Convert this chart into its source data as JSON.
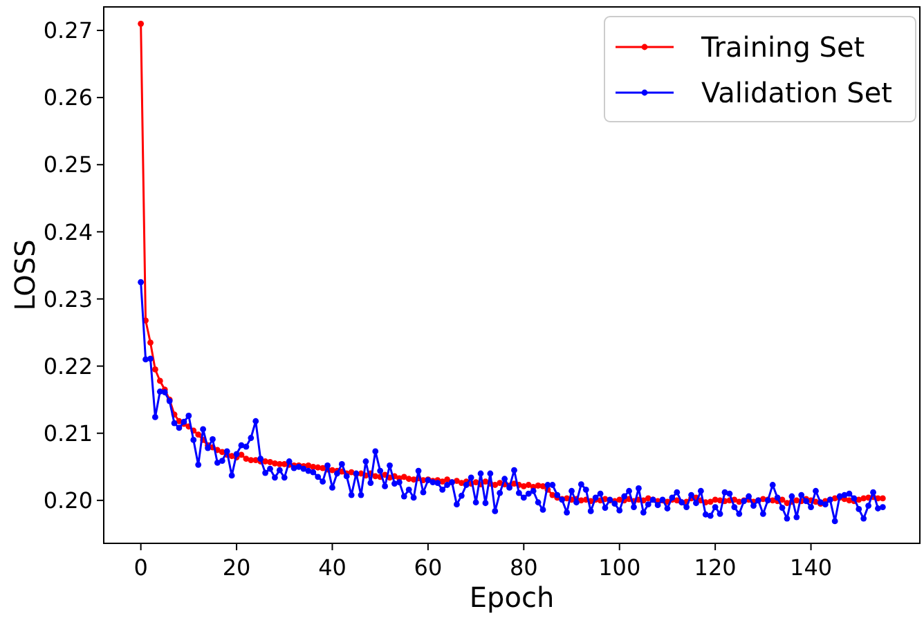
{
  "chart_data": {
    "type": "line",
    "xlabel": "Epoch",
    "ylabel": "LOSS",
    "x": [
      0,
      1,
      2,
      3,
      4,
      5,
      6,
      7,
      8,
      9,
      10,
      11,
      12,
      13,
      14,
      15,
      16,
      17,
      18,
      19,
      20,
      21,
      22,
      23,
      24,
      25,
      26,
      27,
      28,
      29,
      30,
      31,
      32,
      33,
      34,
      35,
      36,
      37,
      38,
      39,
      40,
      41,
      42,
      43,
      44,
      45,
      46,
      47,
      48,
      49,
      50,
      51,
      52,
      53,
      54,
      55,
      56,
      57,
      58,
      59,
      60,
      61,
      62,
      63,
      64,
      65,
      66,
      67,
      68,
      69,
      70,
      71,
      72,
      73,
      74,
      75,
      76,
      77,
      78,
      79,
      80,
      81,
      82,
      83,
      84,
      85,
      86,
      87,
      88,
      89,
      90,
      91,
      92,
      93,
      94,
      95,
      96,
      97,
      98,
      99,
      100,
      101,
      102,
      103,
      104,
      105,
      106,
      107,
      108,
      109,
      110,
      111,
      112,
      113,
      114,
      115,
      116,
      117,
      118,
      119,
      120,
      121,
      122,
      123,
      124,
      125,
      126,
      127,
      128,
      129,
      130,
      131,
      132,
      133,
      134,
      135,
      136,
      137,
      138,
      139,
      140,
      141,
      142,
      143,
      144,
      145,
      146,
      147,
      148,
      149,
      150,
      151,
      152,
      153,
      154,
      155
    ],
    "series": [
      {
        "name": "Training Set",
        "color": "#ff0000",
        "values": [
          0.271,
          0.2268,
          0.2235,
          0.2195,
          0.2178,
          0.2165,
          0.215,
          0.2128,
          0.2118,
          0.2114,
          0.211,
          0.2104,
          0.2098,
          0.209,
          0.2082,
          0.2079,
          0.2075,
          0.2072,
          0.2068,
          0.2066,
          0.2064,
          0.2068,
          0.2062,
          0.206,
          0.206,
          0.2058,
          0.2058,
          0.2057,
          0.2055,
          0.2054,
          0.2054,
          0.2053,
          0.2052,
          0.2052,
          0.2051,
          0.2052,
          0.205,
          0.2049,
          0.2048,
          0.2046,
          0.2045,
          0.2044,
          0.2043,
          0.204,
          0.2042,
          0.2039,
          0.204,
          0.2037,
          0.204,
          0.2036,
          0.2035,
          0.2038,
          0.2034,
          0.2036,
          0.2033,
          0.2035,
          0.2032,
          0.2031,
          0.2033,
          0.203,
          0.2031,
          0.2029,
          0.203,
          0.2028,
          0.2031,
          0.2027,
          0.2029,
          0.2026,
          0.2028,
          0.2025,
          0.2027,
          0.2024,
          0.2028,
          0.2025,
          0.2023,
          0.2026,
          0.2024,
          0.2022,
          0.2025,
          0.2023,
          0.2021,
          0.2023,
          0.202,
          0.2022,
          0.2021,
          0.2016,
          0.2008,
          0.2004,
          0.2002,
          0.2003,
          0.2001,
          0.2002,
          0.2,
          0.2001,
          0.1999,
          0.2001,
          0.2,
          0.2002,
          0.2,
          0.1999,
          0.2001,
          0.2,
          0.2002,
          0.1999,
          0.2001,
          0.2,
          0.2003,
          0.2001,
          0.1999,
          0.2,
          0.1998,
          0.2001,
          0.2,
          0.1997,
          0.1998,
          0.2003,
          0.2004,
          0.2,
          0.1997,
          0.1998,
          0.2001,
          0.2,
          0.1999,
          0.2,
          0.2001,
          0.1998,
          0.2,
          0.2001,
          0.1998,
          0.2,
          0.2002,
          0.2001,
          0.2,
          0.1999,
          0.2001,
          0.1996,
          0.1998,
          0.2,
          0.1999,
          0.2002,
          0.2,
          0.1998,
          0.1995,
          0.1999,
          0.2001,
          0.2003,
          0.2004,
          0.2002,
          0.2,
          0.1999,
          0.2001,
          0.2003,
          0.2004,
          0.2005,
          0.2003,
          0.2003
        ]
      },
      {
        "name": "Validation Set",
        "color": "#0000ff",
        "values": [
          0.2325,
          0.221,
          0.2211,
          0.2124,
          0.2162,
          0.2161,
          0.2148,
          0.2115,
          0.2108,
          0.2117,
          0.2126,
          0.209,
          0.2053,
          0.2106,
          0.2078,
          0.2091,
          0.2056,
          0.2059,
          0.2073,
          0.2037,
          0.2069,
          0.2082,
          0.208,
          0.2093,
          0.2118,
          0.2062,
          0.2041,
          0.2047,
          0.2034,
          0.2045,
          0.2034,
          0.2058,
          0.2048,
          0.205,
          0.2047,
          0.2044,
          0.2042,
          0.2035,
          0.2028,
          0.2052,
          0.2019,
          0.204,
          0.2054,
          0.2036,
          0.2008,
          0.204,
          0.2008,
          0.2058,
          0.2026,
          0.2073,
          0.2044,
          0.2021,
          0.2052,
          0.2025,
          0.2027,
          0.2006,
          0.2016,
          0.2004,
          0.2044,
          0.2012,
          0.203,
          0.2027,
          0.2026,
          0.2016,
          0.2023,
          0.2027,
          0.1994,
          0.2007,
          0.2023,
          0.2034,
          0.1997,
          0.204,
          0.1996,
          0.204,
          0.1984,
          0.2011,
          0.2032,
          0.2019,
          0.2045,
          0.2011,
          0.2004,
          0.201,
          0.2014,
          0.1997,
          0.1986,
          0.2023,
          0.2023,
          0.2008,
          0.2001,
          0.1982,
          0.2014,
          0.1997,
          0.2024,
          0.2016,
          0.1984,
          0.2004,
          0.201,
          0.1989,
          0.2001,
          0.1995,
          0.1985,
          0.2006,
          0.2014,
          0.199,
          0.2018,
          0.1982,
          0.1994,
          0.2001,
          0.1993,
          0.2001,
          0.1988,
          0.2004,
          0.2012,
          0.1997,
          0.199,
          0.2008,
          0.1996,
          0.2014,
          0.1979,
          0.1977,
          0.199,
          0.198,
          0.2012,
          0.201,
          0.199,
          0.198,
          0.1999,
          0.2006,
          0.1992,
          0.2,
          0.198,
          0.2,
          0.2023,
          0.2004,
          0.1989,
          0.1973,
          0.2006,
          0.1975,
          0.2008,
          0.1999,
          0.199,
          0.2014,
          0.1997,
          0.1994,
          0.2001,
          0.1969,
          0.2006,
          0.2008,
          0.201,
          0.2003,
          0.1987,
          0.1973,
          0.1992,
          0.2012,
          0.1988,
          0.199
        ]
      }
    ],
    "xlim": [
      -7.75,
      162.75
    ],
    "xticks": [
      0,
      20,
      40,
      60,
      80,
      100,
      120,
      140
    ],
    "ylim": [
      0.1936,
      0.2735
    ],
    "yticks": [
      {
        "value": 0.2,
        "label": "0.20"
      },
      {
        "value": 0.21,
        "label": "0.21"
      },
      {
        "value": 0.22,
        "label": "0.22"
      },
      {
        "value": 0.23,
        "label": "0.23"
      },
      {
        "value": 0.24,
        "label": "0.24"
      },
      {
        "value": 0.25,
        "label": "0.25"
      },
      {
        "value": 0.26,
        "label": "0.26"
      },
      {
        "value": 0.27,
        "label": "0.27"
      }
    ],
    "grid": false,
    "legend": "top right",
    "marker": "circle",
    "line_style": "solid"
  }
}
